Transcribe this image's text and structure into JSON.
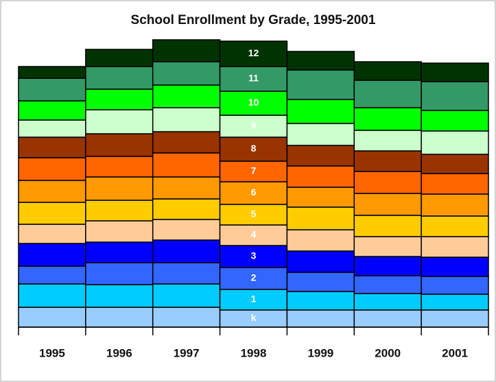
{
  "chart_data": {
    "type": "stacked_bar",
    "title": "School Enrollment by Grade, 1995-2001",
    "categories": [
      "1995",
      "1996",
      "1997",
      "1998",
      "1999",
      "2000",
      "2001"
    ],
    "series": [
      {
        "name": "k",
        "color": "#99ccff",
        "values": [
          29,
          29,
          29,
          25,
          25,
          25,
          25
        ]
      },
      {
        "name": "1",
        "color": "#00ccff",
        "values": [
          34,
          33,
          34,
          30,
          27,
          24,
          23
        ]
      },
      {
        "name": "2",
        "color": "#3366ff",
        "values": [
          26,
          32,
          31,
          32,
          28,
          26,
          26
        ]
      },
      {
        "name": "3",
        "color": "#0000ff",
        "values": [
          33,
          30,
          33,
          32,
          31,
          28,
          28
        ]
      },
      {
        "name": "4",
        "color": "#ffcc99",
        "values": [
          28,
          31,
          30,
          30,
          31,
          29,
          30
        ]
      },
      {
        "name": "5",
        "color": "#ffcc00",
        "values": [
          32,
          30,
          30,
          30,
          33,
          31,
          30
        ]
      },
      {
        "name": "6",
        "color": "#ff9900",
        "values": [
          32,
          34,
          32,
          33,
          29,
          32,
          32
        ]
      },
      {
        "name": "7",
        "color": "#ff6600",
        "values": [
          33,
          30,
          35,
          30,
          31,
          32,
          30
        ]
      },
      {
        "name": "8",
        "color": "#993300",
        "values": [
          30,
          33,
          31,
          35,
          30,
          30,
          28
        ]
      },
      {
        "name": "9",
        "color": "#ccffcc",
        "values": [
          25,
          35,
          35,
          32,
          32,
          30,
          34
        ]
      },
      {
        "name": "10",
        "color": "#00ff00",
        "values": [
          28,
          30,
          33,
          35,
          35,
          33,
          30
        ]
      },
      {
        "name": "11",
        "color": "#339966",
        "values": [
          33,
          33,
          34,
          36,
          43,
          40,
          42
        ]
      },
      {
        "name": "12",
        "color": "#003300",
        "values": [
          17,
          25,
          32,
          37,
          27,
          27,
          27
        ]
      }
    ]
  }
}
